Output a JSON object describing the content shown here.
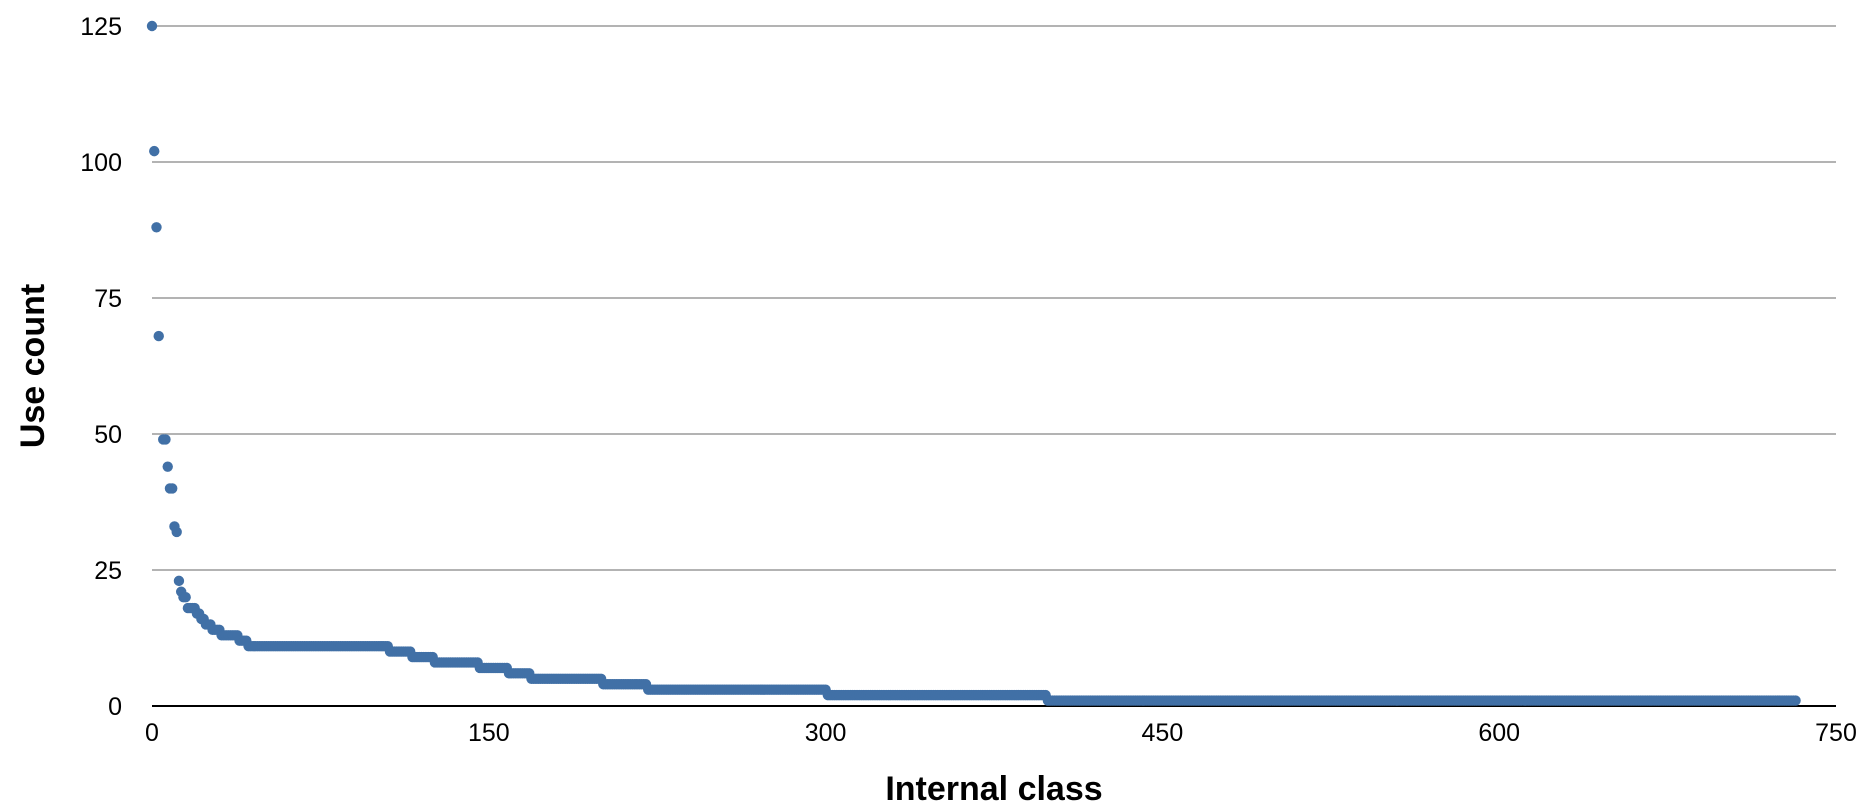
{
  "chart_data": {
    "type": "scatter",
    "title": "",
    "xlabel": "Internal class",
    "ylabel": "Use count",
    "xlim": [
      0,
      750
    ],
    "ylim": [
      0,
      125
    ],
    "x_ticks": [
      0,
      150,
      300,
      450,
      600,
      750
    ],
    "y_ticks": [
      0,
      25,
      50,
      75,
      100,
      125
    ],
    "grid": "horizontal",
    "legend": "none",
    "marker_color": "#4170a6",
    "steps": [
      {
        "x_start": 0,
        "x_end": 0,
        "y": 125
      },
      {
        "x_start": 1,
        "x_end": 1,
        "y": 102
      },
      {
        "x_start": 2,
        "x_end": 2,
        "y": 88
      },
      {
        "x_start": 3,
        "x_end": 3,
        "y": 68
      },
      {
        "x_start": 5,
        "x_end": 6,
        "y": 49
      },
      {
        "x_start": 7,
        "x_end": 7,
        "y": 44
      },
      {
        "x_start": 8,
        "x_end": 9,
        "y": 40
      },
      {
        "x_start": 10,
        "x_end": 10,
        "y": 33
      },
      {
        "x_start": 11,
        "x_end": 11,
        "y": 32
      },
      {
        "x_start": 12,
        "x_end": 12,
        "y": 23
      },
      {
        "x_start": 13,
        "x_end": 13,
        "y": 21
      },
      {
        "x_start": 14,
        "x_end": 15,
        "y": 20
      },
      {
        "x_start": 16,
        "x_end": 19,
        "y": 18
      },
      {
        "x_start": 20,
        "x_end": 21,
        "y": 17
      },
      {
        "x_start": 22,
        "x_end": 23,
        "y": 16
      },
      {
        "x_start": 24,
        "x_end": 26,
        "y": 15
      },
      {
        "x_start": 27,
        "x_end": 30,
        "y": 14
      },
      {
        "x_start": 31,
        "x_end": 38,
        "y": 13
      },
      {
        "x_start": 39,
        "x_end": 42,
        "y": 12
      },
      {
        "x_start": 43,
        "x_end": 105,
        "y": 11
      },
      {
        "x_start": 106,
        "x_end": 115,
        "y": 10
      },
      {
        "x_start": 116,
        "x_end": 125,
        "y": 9
      },
      {
        "x_start": 126,
        "x_end": 145,
        "y": 8
      },
      {
        "x_start": 146,
        "x_end": 158,
        "y": 7
      },
      {
        "x_start": 159,
        "x_end": 168,
        "y": 6
      },
      {
        "x_start": 169,
        "x_end": 200,
        "y": 5
      },
      {
        "x_start": 201,
        "x_end": 220,
        "y": 4
      },
      {
        "x_start": 221,
        "x_end": 300,
        "y": 3
      },
      {
        "x_start": 301,
        "x_end": 398,
        "y": 2
      },
      {
        "x_start": 399,
        "x_end": 732,
        "y": 1
      }
    ]
  }
}
